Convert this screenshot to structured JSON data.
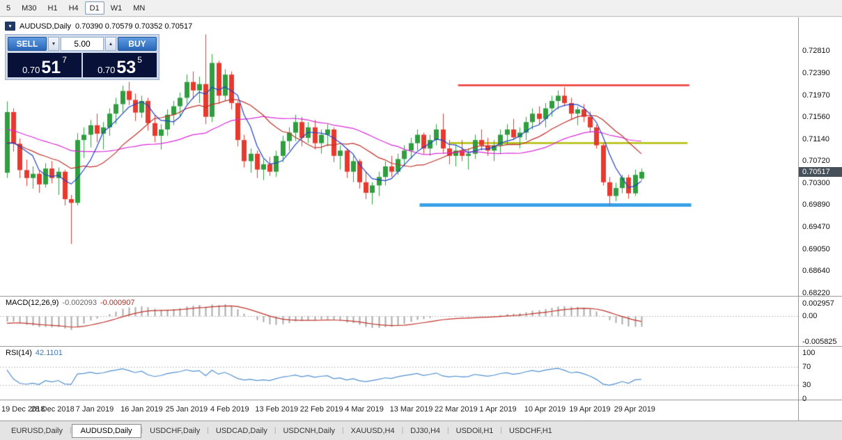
{
  "toolbar": {
    "timeframes": [
      "5",
      "M30",
      "H1",
      "H4",
      "D1",
      "W1",
      "MN"
    ],
    "active": "D1"
  },
  "chart": {
    "header": {
      "symbol": "AUDUSD,Daily",
      "ohlc": "0.70390 0.70579 0.70352 0.70517"
    },
    "current_price": "0.70517",
    "trade_panel": {
      "sell_label": "SELL",
      "buy_label": "BUY",
      "lot_value": "5.00",
      "sell_price": {
        "base": "0.70",
        "pips": "51",
        "pipette": "7"
      },
      "buy_price": {
        "base": "0.70",
        "pips": "53",
        "pipette": "5"
      }
    }
  },
  "indicators": {
    "macd": {
      "name": "MACD(12,26,9)",
      "main_value": "-0.002093",
      "signal_value": "-0.000907",
      "scale_labels": [
        "0.002957",
        "0.00",
        "-0.005825"
      ]
    },
    "rsi": {
      "name": "RSI(14)",
      "value": "42.1101",
      "scale_labels": [
        "100",
        "70",
        "30",
        "0"
      ],
      "levels": [
        70,
        30
      ]
    }
  },
  "tab_bar": {
    "tabs": [
      "EURUSD,Daily",
      "AUDUSD,Daily",
      "USDCHF,Daily",
      "USDCAD,Daily",
      "USDCNH,Daily",
      "XAUUSD,H4",
      "DJ30,H4",
      "USDOil,H1",
      "USDCHF,H1"
    ],
    "active": "AUDUSD,Daily"
  },
  "chart_data": {
    "type": "candlestick",
    "symbol": "AUDUSD",
    "timeframe": "Daily",
    "ohlc_display": {
      "open": "0.70390",
      "high": "0.70579",
      "low": "0.70352",
      "close": "0.70517"
    },
    "y_axis": {
      "min": 0.6822,
      "max": 0.7281,
      "labels": [
        "0.72810",
        "0.72390",
        "0.71970",
        "0.71560",
        "0.71140",
        "0.70720",
        "0.70300",
        "0.69890",
        "0.69470",
        "0.69050",
        "0.68640",
        "0.68220"
      ]
    },
    "x_axis": {
      "labels": [
        {
          "text": "19 Dec 2018",
          "bar": 0
        },
        {
          "text": "28 Dec 2018",
          "bar": 7
        },
        {
          "text": "7 Jan 2019",
          "bar": 14
        },
        {
          "text": "16 Jan 2019",
          "bar": 21
        },
        {
          "text": "25 Jan 2019",
          "bar": 28
        },
        {
          "text": "4 Feb 2019",
          "bar": 35
        },
        {
          "text": "13 Feb 2019",
          "bar": 42
        },
        {
          "text": "22 Feb 2019",
          "bar": 49
        },
        {
          "text": "4 Mar 2019",
          "bar": 56
        },
        {
          "text": "13 Mar 2019",
          "bar": 63
        },
        {
          "text": "22 Mar 2019",
          "bar": 70
        },
        {
          "text": "1 Apr 2019",
          "bar": 77
        },
        {
          "text": "10 Apr 2019",
          "bar": 84
        },
        {
          "text": "19 Apr 2019",
          "bar": 91
        },
        {
          "text": "29 Apr 2019",
          "bar": 98
        }
      ]
    },
    "colors": {
      "bull": "#2e9e3f",
      "bear": "#e8392e",
      "ma_fast": "#2041c8",
      "ma_mid": "#c03028",
      "ma_slow": "#d929d9",
      "macd_hist": "#a8a8a8",
      "macd_signal": "#c03028",
      "rsi_line": "#4f8fd0",
      "level_dotted": "#c0c0c0"
    },
    "overlays": {
      "ma_fast_period": 5,
      "ma_mid_period": 13,
      "ma_slow_period": 30
    },
    "hlines": [
      {
        "price": 0.7216,
        "from_bar": 70.4,
        "to_bar": 106.5,
        "color": "#ef5350",
        "width": 3
      },
      {
        "price": 0.7107,
        "from_bar": 69.0,
        "to_bar": 106.2,
        "color": "#bdc62a",
        "width": 3
      },
      {
        "price": 0.6989,
        "from_bar": 64.4,
        "to_bar": 106.8,
        "color": "#3aa0e8",
        "width": 5
      }
    ],
    "prehistory_closes": [
      0.718,
      0.7175,
      0.7178,
      0.717,
      0.7165,
      0.7168,
      0.716,
      0.7155,
      0.7158,
      0.715,
      0.7145,
      0.7148,
      0.714,
      0.7135,
      0.7138,
      0.713,
      0.7125,
      0.7128,
      0.712,
      0.7115,
      0.7118,
      0.711,
      0.7105,
      0.7108,
      0.71,
      0.7095,
      0.7098,
      0.709,
      0.7085,
      0.7088
    ],
    "candles": [
      [
        0.705,
        0.7185,
        0.704,
        0.7165
      ],
      [
        0.7165,
        0.7172,
        0.709,
        0.7105
      ],
      [
        0.7105,
        0.7115,
        0.704,
        0.7055
      ],
      [
        0.7055,
        0.7075,
        0.7025,
        0.704
      ],
      [
        0.704,
        0.7062,
        0.702,
        0.7048
      ],
      [
        0.7048,
        0.7055,
        0.7012,
        0.7028
      ],
      [
        0.7028,
        0.7068,
        0.7022,
        0.7058
      ],
      [
        0.7058,
        0.7072,
        0.703,
        0.704
      ],
      [
        0.704,
        0.706,
        0.7008,
        0.7052
      ],
      [
        0.7052,
        0.7056,
        0.6988,
        0.7
      ],
      [
        0.7,
        0.7008,
        0.6915,
        0.6993
      ],
      [
        0.6993,
        0.7125,
        0.6988,
        0.7112
      ],
      [
        0.7112,
        0.7136,
        0.7078,
        0.7122
      ],
      [
        0.7122,
        0.715,
        0.7098,
        0.714
      ],
      [
        0.714,
        0.7162,
        0.7108,
        0.7124
      ],
      [
        0.7124,
        0.7146,
        0.7094,
        0.7136
      ],
      [
        0.7136,
        0.7172,
        0.712,
        0.7162
      ],
      [
        0.7162,
        0.7192,
        0.7142,
        0.718
      ],
      [
        0.718,
        0.7215,
        0.7164,
        0.7205
      ],
      [
        0.7205,
        0.7222,
        0.7178,
        0.7188
      ],
      [
        0.7188,
        0.72,
        0.7148,
        0.7164
      ],
      [
        0.7164,
        0.7196,
        0.7154,
        0.7186
      ],
      [
        0.7186,
        0.7192,
        0.713,
        0.7144
      ],
      [
        0.7144,
        0.716,
        0.7108,
        0.712
      ],
      [
        0.712,
        0.7142,
        0.7094,
        0.7132
      ],
      [
        0.7132,
        0.717,
        0.712,
        0.716
      ],
      [
        0.716,
        0.7186,
        0.714,
        0.7176
      ],
      [
        0.7176,
        0.7202,
        0.7156,
        0.7192
      ],
      [
        0.7192,
        0.7236,
        0.718,
        0.7222
      ],
      [
        0.7222,
        0.7242,
        0.719,
        0.7206
      ],
      [
        0.7206,
        0.7232,
        0.7182,
        0.7218
      ],
      [
        0.7218,
        0.7312,
        0.7142,
        0.7156
      ],
      [
        0.7156,
        0.7275,
        0.7146,
        0.7258
      ],
      [
        0.7258,
        0.7262,
        0.718,
        0.7196
      ],
      [
        0.7196,
        0.7246,
        0.7186,
        0.7236
      ],
      [
        0.7236,
        0.7242,
        0.717,
        0.7182
      ],
      [
        0.7182,
        0.7186,
        0.71,
        0.7112
      ],
      [
        0.7112,
        0.7122,
        0.706,
        0.7072
      ],
      [
        0.7072,
        0.7096,
        0.705,
        0.7086
      ],
      [
        0.7086,
        0.7092,
        0.704,
        0.7056
      ],
      [
        0.7056,
        0.7076,
        0.7036,
        0.7066
      ],
      [
        0.7066,
        0.708,
        0.7044,
        0.7052
      ],
      [
        0.7052,
        0.7092,
        0.7042,
        0.7082
      ],
      [
        0.7082,
        0.712,
        0.707,
        0.711
      ],
      [
        0.711,
        0.7136,
        0.7092,
        0.7126
      ],
      [
        0.7126,
        0.716,
        0.711,
        0.7146
      ],
      [
        0.7146,
        0.7156,
        0.71,
        0.7116
      ],
      [
        0.7116,
        0.7146,
        0.7106,
        0.7136
      ],
      [
        0.7136,
        0.715,
        0.7094,
        0.7106
      ],
      [
        0.7106,
        0.7132,
        0.7086,
        0.7122
      ],
      [
        0.7122,
        0.7142,
        0.71,
        0.7132
      ],
      [
        0.7132,
        0.7136,
        0.707,
        0.7082
      ],
      [
        0.7082,
        0.7102,
        0.7056,
        0.7092
      ],
      [
        0.7092,
        0.7096,
        0.704,
        0.7052
      ],
      [
        0.7052,
        0.7082,
        0.7032,
        0.7072
      ],
      [
        0.7072,
        0.7076,
        0.702,
        0.7032
      ],
      [
        0.7032,
        0.7052,
        0.7,
        0.7012
      ],
      [
        0.7012,
        0.7032,
        0.699,
        0.7026
      ],
      [
        0.7026,
        0.7052,
        0.7006,
        0.7042
      ],
      [
        0.7042,
        0.7072,
        0.7026,
        0.7062
      ],
      [
        0.7062,
        0.7082,
        0.7042,
        0.7052
      ],
      [
        0.7052,
        0.7086,
        0.7046,
        0.7076
      ],
      [
        0.7076,
        0.7102,
        0.7062,
        0.7092
      ],
      [
        0.7092,
        0.7116,
        0.7076,
        0.7106
      ],
      [
        0.7106,
        0.7132,
        0.7092,
        0.7122
      ],
      [
        0.7122,
        0.7126,
        0.7086,
        0.7096
      ],
      [
        0.7096,
        0.7122,
        0.7082,
        0.7112
      ],
      [
        0.7112,
        0.7142,
        0.7102,
        0.7132
      ],
      [
        0.7132,
        0.7162,
        0.7086,
        0.7096
      ],
      [
        0.7096,
        0.7112,
        0.7066,
        0.7082
      ],
      [
        0.7082,
        0.7102,
        0.7062,
        0.7092
      ],
      [
        0.7092,
        0.7112,
        0.7072,
        0.7082
      ],
      [
        0.7082,
        0.7096,
        0.7056,
        0.7086
      ],
      [
        0.7086,
        0.7122,
        0.7076,
        0.7112
      ],
      [
        0.7112,
        0.7132,
        0.7092,
        0.7102
      ],
      [
        0.7102,
        0.7116,
        0.7082,
        0.7092
      ],
      [
        0.7092,
        0.7112,
        0.7072,
        0.7102
      ],
      [
        0.7102,
        0.7132,
        0.7086,
        0.7122
      ],
      [
        0.7122,
        0.7142,
        0.7102,
        0.7132
      ],
      [
        0.7132,
        0.7152,
        0.7112,
        0.7117
      ],
      [
        0.7117,
        0.7136,
        0.7096,
        0.7126
      ],
      [
        0.7126,
        0.7156,
        0.7112,
        0.7146
      ],
      [
        0.7146,
        0.7172,
        0.7132,
        0.7162
      ],
      [
        0.7162,
        0.7176,
        0.7142,
        0.7152
      ],
      [
        0.7152,
        0.7182,
        0.7136,
        0.7172
      ],
      [
        0.7172,
        0.7196,
        0.7156,
        0.7186
      ],
      [
        0.7186,
        0.7206,
        0.717,
        0.7196
      ],
      [
        0.7196,
        0.7212,
        0.7176,
        0.7182
      ],
      [
        0.7182,
        0.7192,
        0.715,
        0.7162
      ],
      [
        0.7162,
        0.7176,
        0.714,
        0.717
      ],
      [
        0.717,
        0.718,
        0.7146,
        0.7156
      ],
      [
        0.7156,
        0.7166,
        0.7126,
        0.7136
      ],
      [
        0.7136,
        0.7141,
        0.7096,
        0.7102
      ],
      [
        0.7102,
        0.7106,
        0.7026,
        0.7032
      ],
      [
        0.7032,
        0.7042,
        0.6988,
        0.7006
      ],
      [
        0.7006,
        0.7031,
        0.6996,
        0.7021
      ],
      [
        0.7021,
        0.7046,
        0.7011,
        0.7041
      ],
      [
        0.7041,
        0.7046,
        0.7001,
        0.7011
      ],
      [
        0.7011,
        0.7056,
        0.7006,
        0.7046
      ],
      [
        0.7039,
        0.70579,
        0.70352,
        0.70517
      ]
    ]
  }
}
